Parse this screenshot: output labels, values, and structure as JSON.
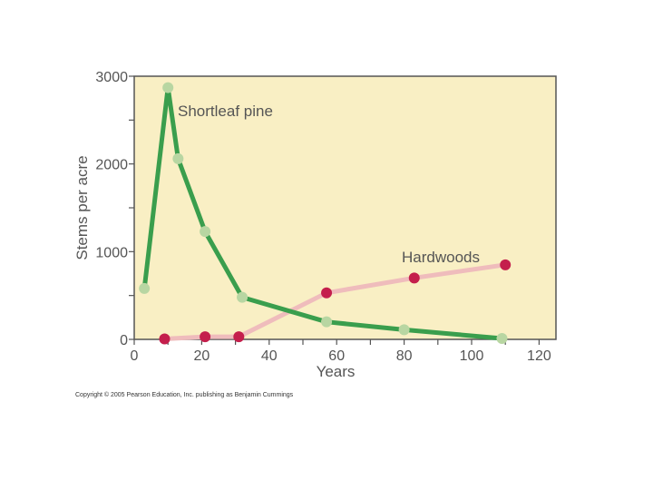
{
  "chart_data": {
    "type": "line",
    "xlabel": "Years",
    "ylabel": "Stems per acre",
    "xlim": [
      0,
      125
    ],
    "ylim": [
      0,
      3000
    ],
    "xticks": [
      0,
      20,
      40,
      60,
      80,
      100,
      120
    ],
    "yticks": [
      0,
      1000,
      2000,
      3000
    ],
    "grid": false,
    "background_color": "#f9efc4",
    "series": [
      {
        "name": "Shortleaf pine",
        "line_color": "#3a9e4d",
        "marker_color": "#b8d6a2",
        "points": [
          {
            "x": 3,
            "y": 580
          },
          {
            "x": 10,
            "y": 2870
          },
          {
            "x": 13,
            "y": 2060
          },
          {
            "x": 21,
            "y": 1230
          },
          {
            "x": 32,
            "y": 480
          },
          {
            "x": 57,
            "y": 200
          },
          {
            "x": 80,
            "y": 110
          },
          {
            "x": 109,
            "y": 10
          }
        ]
      },
      {
        "name": "Hardwoods",
        "line_color": "#efbcbc",
        "marker_color": "#c41f4c",
        "points": [
          {
            "x": 9,
            "y": 5
          },
          {
            "x": 21,
            "y": 30
          },
          {
            "x": 31,
            "y": 30
          },
          {
            "x": 57,
            "y": 530
          },
          {
            "x": 83,
            "y": 700
          },
          {
            "x": 110,
            "y": 850
          }
        ]
      }
    ]
  },
  "copyright": "Copyright © 2005 Pearson Education, Inc. publishing as Benjamin Cummings"
}
